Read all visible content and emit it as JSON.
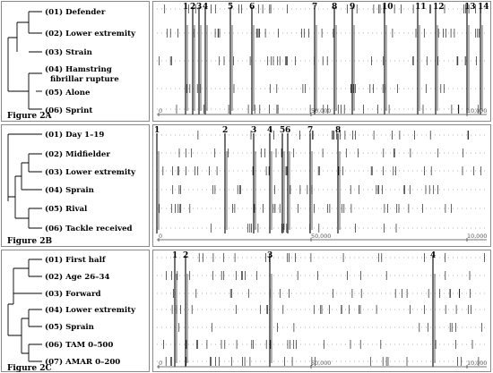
{
  "panels": [
    {
      "key": "A",
      "figure_label": "Figure 2A",
      "items": [
        {
          "label": "(01) Defender"
        },
        {
          "label": "(02) Lower extremity"
        },
        {
          "label": "(03) Strain"
        },
        {
          "label": "(04) Hamstring fibrillar rupture",
          "line1": "(04) Hamstring",
          "line2": "fibrillar rupture"
        },
        {
          "label": "(05) Alone"
        },
        {
          "label": "(06) Sprint"
        }
      ],
      "event_labels": [
        "1",
        "2",
        "3",
        "4",
        "5",
        "6",
        "7",
        "8",
        "9",
        "10",
        "11",
        "12",
        "13",
        "14"
      ],
      "axis_ticks": [
        "0",
        "50,000",
        "10,000"
      ]
    },
    {
      "key": "B",
      "figure_label": "Figure 2B",
      "items": [
        {
          "label": "(01) Day 1–19"
        },
        {
          "label": "(02) Midfielder"
        },
        {
          "label": "(03) Lower extremity"
        },
        {
          "label": "(04) Sprain"
        },
        {
          "label": "(05) Rival"
        },
        {
          "label": "(06) Tackle received"
        }
      ],
      "event_labels": [
        "1",
        "2",
        "3",
        "4",
        "5",
        "6",
        "7",
        "8"
      ],
      "axis_ticks": [
        "0",
        "50,000",
        "10,000"
      ]
    },
    {
      "key": "C",
      "figure_label": "Figure 2C",
      "items": [
        {
          "label": "(01) First half"
        },
        {
          "label": "(02) Age 26–34"
        },
        {
          "label": "(03) Forward"
        },
        {
          "label": "(04) Lower extremity"
        },
        {
          "label": "(05) Sprain"
        },
        {
          "label": "(06) TAM 0–500"
        },
        {
          "label": "(07) AMAR 0–200"
        }
      ],
      "event_labels": [
        "1",
        "2",
        "3",
        "4"
      ],
      "axis_ticks": [
        "0",
        "50,000",
        "10,000"
      ]
    }
  ]
}
